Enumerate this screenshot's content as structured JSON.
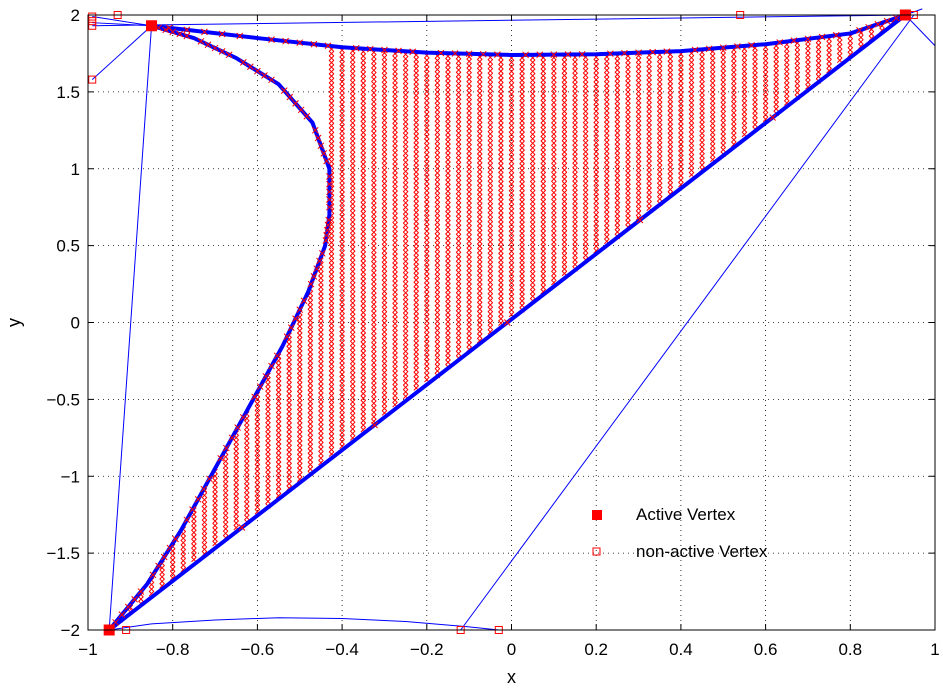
{
  "chart_data": {
    "type": "scatter",
    "title": "",
    "xlabel": "x",
    "ylabel": "y",
    "xlim": [
      -1,
      1
    ],
    "ylim": [
      -2,
      2
    ],
    "grid": true,
    "grid_style": "dotted",
    "legend_position": "bottom-right",
    "colors": {
      "boundary": "#0000ff",
      "fill_marks": "#ff0000",
      "vertex": "#ff0000",
      "lines": "#0000ff"
    },
    "x_ticks": [
      {
        "value": -1,
        "label": "−1"
      },
      {
        "value": -0.8,
        "label": "−0.8"
      },
      {
        "value": -0.6,
        "label": "−0.6"
      },
      {
        "value": -0.4,
        "label": "−0.4"
      },
      {
        "value": -0.2,
        "label": "−0.2"
      },
      {
        "value": 0,
        "label": "0"
      },
      {
        "value": 0.2,
        "label": "0.2"
      },
      {
        "value": 0.4,
        "label": "0.4"
      },
      {
        "value": 0.6,
        "label": "0.6"
      },
      {
        "value": 0.8,
        "label": "0.8"
      },
      {
        "value": 1,
        "label": "1"
      }
    ],
    "y_ticks": [
      {
        "value": -2,
        "label": "−2"
      },
      {
        "value": -1.5,
        "label": "−1.5"
      },
      {
        "value": -1,
        "label": "−1"
      },
      {
        "value": -0.5,
        "label": "−0.5"
      },
      {
        "value": 0,
        "label": "0"
      },
      {
        "value": 0.5,
        "label": "0.5"
      },
      {
        "value": 1,
        "label": "1"
      },
      {
        "value": 1.5,
        "label": "1.5"
      },
      {
        "value": 2,
        "label": "2"
      }
    ],
    "series": [
      {
        "name": "Active Vertex",
        "marker": "filled-square",
        "points": [
          [
            -0.95,
            -2.0
          ],
          [
            -0.85,
            1.93
          ],
          [
            0.93,
            2.0
          ]
        ]
      },
      {
        "name": "non-active Vertex",
        "marker": "open-square",
        "points": [
          [
            -0.99,
            1.99
          ],
          [
            -0.99,
            1.96
          ],
          [
            -0.99,
            1.93
          ],
          [
            -0.93,
            2.0
          ],
          [
            -0.99,
            1.58
          ],
          [
            0.54,
            2.0
          ],
          [
            0.95,
            2.0
          ],
          [
            -0.91,
            -2.0
          ],
          [
            -0.12,
            -2.0
          ],
          [
            -0.03,
            -2.0
          ]
        ]
      }
    ],
    "region": {
      "upper_curve": [
        [
          -0.85,
          1.93
        ],
        [
          -0.6,
          1.85
        ],
        [
          -0.4,
          1.79
        ],
        [
          -0.2,
          1.755
        ],
        [
          0.0,
          1.74
        ],
        [
          0.2,
          1.745
        ],
        [
          0.4,
          1.765
        ],
        [
          0.6,
          1.81
        ],
        [
          0.8,
          1.88
        ],
        [
          0.93,
          2.0
        ]
      ],
      "lower_line": [
        [
          -0.95,
          -2.0
        ],
        [
          0.93,
          2.0
        ]
      ],
      "left_curve": [
        [
          -0.85,
          1.93
        ],
        [
          -0.75,
          1.85
        ],
        [
          -0.65,
          1.72
        ],
        [
          -0.55,
          1.55
        ],
        [
          -0.47,
          1.3
        ],
        [
          -0.43,
          1.0
        ],
        [
          -0.43,
          0.7
        ],
        [
          -0.44,
          0.5
        ],
        [
          -0.48,
          0.2
        ],
        [
          -0.54,
          -0.15
        ],
        [
          -0.62,
          -0.55
        ],
        [
          -0.7,
          -0.95
        ],
        [
          -0.78,
          -1.35
        ],
        [
          -0.86,
          -1.7
        ],
        [
          -0.95,
          -2.0
        ]
      ],
      "fill_x_step": 0.025
    },
    "extra_lines": [
      [
        [
          -0.99,
          1.95
        ],
        [
          -0.85,
          1.93
        ]
      ],
      [
        [
          -0.99,
          1.99
        ],
        [
          -0.85,
          1.93
        ]
      ],
      [
        [
          -0.99,
          1.58
        ],
        [
          -0.85,
          1.93
        ]
      ],
      [
        [
          -0.85,
          1.93
        ],
        [
          -0.95,
          -2.0
        ]
      ],
      [
        [
          -0.99,
          1.93
        ],
        [
          0.93,
          2.0
        ]
      ],
      [
        [
          -0.93,
          2.0
        ],
        [
          0.54,
          2.0
        ]
      ],
      [
        [
          0.54,
          2.0
        ],
        [
          0.93,
          2.0
        ]
      ],
      [
        [
          0.93,
          2.0
        ],
        [
          1.0,
          1.8
        ]
      ],
      [
        [
          0.93,
          2.0
        ],
        [
          0.97,
          2.04
        ]
      ],
      [
        [
          -0.12,
          -2.0
        ],
        [
          0.95,
          2.0
        ]
      ],
      [
        [
          -0.95,
          -2.0
        ],
        [
          -0.03,
          -2.0
        ]
      ]
    ],
    "bottom_arc": [
      [
        -0.95,
        -2.0
      ],
      [
        -0.85,
        -1.96
      ],
      [
        -0.7,
        -1.935
      ],
      [
        -0.55,
        -1.92
      ],
      [
        -0.4,
        -1.925
      ],
      [
        -0.25,
        -1.945
      ],
      [
        -0.1,
        -1.98
      ],
      [
        -0.03,
        -2.0
      ]
    ]
  }
}
